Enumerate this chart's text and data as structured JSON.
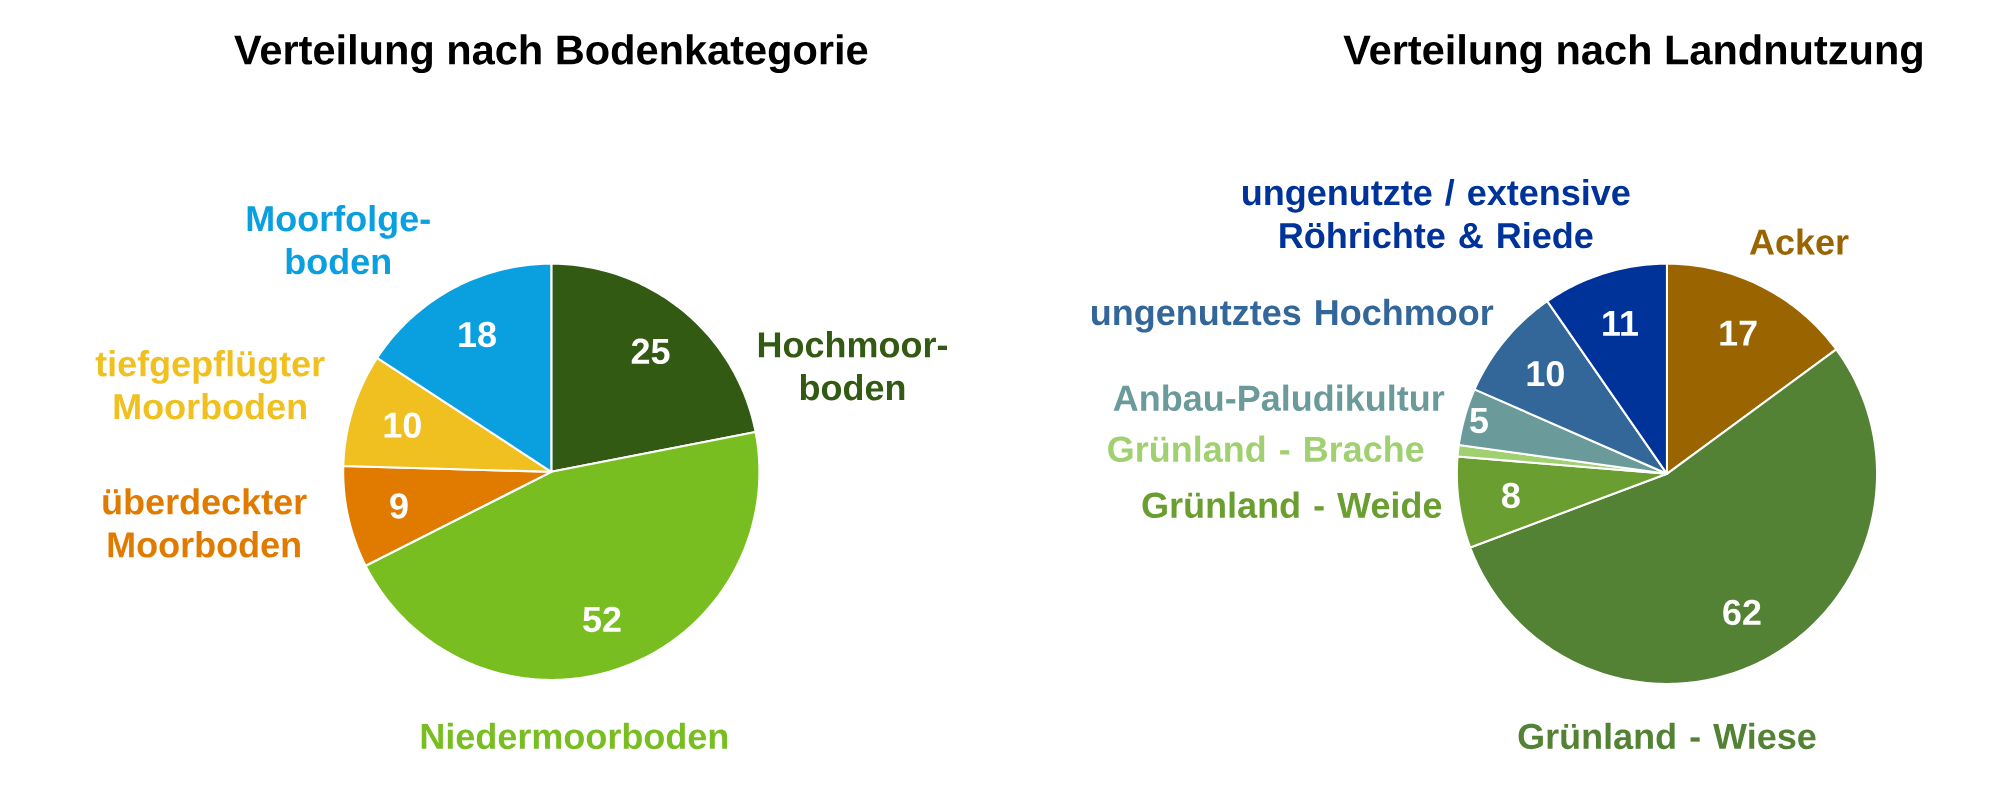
{
  "chart_data": [
    {
      "type": "pie",
      "title": "Verteilung nach Bodenkategorie",
      "categories": [
        "Hochmoor-boden",
        "Niedermoorboden",
        "überdeckter Moorboden",
        "tiefgepflügter Moorboden",
        "Moorfolge-boden"
      ],
      "values": [
        25,
        52,
        9,
        10,
        18
      ],
      "colors": [
        "#335a12",
        "#78be20",
        "#e07b00",
        "#f0c020",
        "#0aa0e0"
      ],
      "data_labels": true
    },
    {
      "type": "pie",
      "title": "Verteilung nach Landnutzung",
      "categories": [
        "Acker",
        "Grünland - Wiese",
        "Grünland - Weide",
        "Grünland - Brache",
        "Anbau-Paludikultur",
        "ungenutztes Hochmoor",
        "ungenutzte / extensive Röhrichte & Riede"
      ],
      "values": [
        17,
        62,
        8,
        1,
        5,
        10,
        11
      ],
      "colors": [
        "#9a6500",
        "#548235",
        "#6a9e30",
        "#a0d070",
        "#6a9a9a",
        "#336699",
        "#003399"
      ],
      "value_labels": [
        "17",
        "62",
        "8",
        null,
        "5",
        "10",
        "11"
      ]
    }
  ]
}
